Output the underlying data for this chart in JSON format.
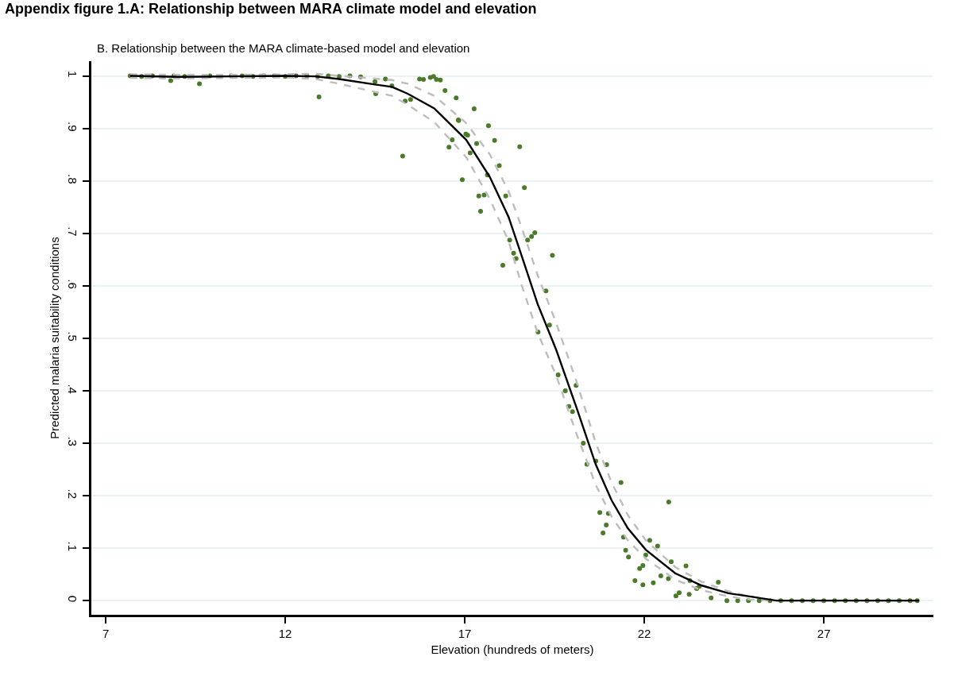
{
  "chart_data": {
    "type": "scatter",
    "title": "Appendix figure 1.A: Relationship between MARA climate model and elevation",
    "subtitle": "B. Relationship between the MARA climate-based model and elevation",
    "xlabel": "Elevation (hundreds of meters)",
    "ylabel": "Predicted malaria suitability conditions",
    "xlim": [
      6.6,
      30.05
    ],
    "xticks": [
      7,
      12,
      17,
      22,
      27
    ],
    "ylim": [
      -0.027,
      1.028
    ],
    "yticks": [
      0,
      {
        "value": 0.1,
        "label": ".1"
      },
      {
        "value": 0.2,
        "label": ".2"
      },
      {
        "value": 0.3,
        "label": ".3"
      },
      {
        "value": 0.4,
        "label": ".4"
      },
      {
        "value": 0.5,
        "label": ".5"
      },
      {
        "value": 0.6,
        "label": ".6"
      },
      {
        "value": 0.7,
        "label": ".7"
      },
      {
        "value": 0.8,
        "label": ".8"
      },
      {
        "value": 0.9,
        "label": ".9"
      },
      1
    ],
    "grid": "y",
    "series": [
      {
        "marker": "circle",
        "color": "#4a7a2a",
        "x": [
          7.68,
          8.0,
          8.3,
          8.6,
          8.81,
          8.9,
          9.2,
          9.61,
          9.9,
          10.2,
          10.5,
          10.8,
          11.1,
          11.4,
          11.7,
          12.0,
          12.3,
          12.6,
          12.94,
          12.9,
          13.2,
          13.5,
          13.8,
          14.1,
          14.5,
          14.52,
          14.79,
          14.97,
          15.27,
          15.34,
          15.49,
          15.74,
          15.85,
          16.04,
          16.13,
          16.21,
          16.32,
          16.45,
          16.56,
          16.65,
          16.76,
          16.82,
          16.83,
          16.93,
          17.03,
          17.08,
          17.15,
          17.26,
          17.33,
          17.39,
          17.44,
          17.54,
          17.63,
          17.66,
          17.83,
          17.96,
          18.06,
          18.14,
          18.25,
          18.36,
          18.43,
          18.53,
          18.66,
          18.75,
          18.86,
          18.95,
          19.04,
          19.26,
          19.36,
          19.44,
          19.6,
          19.8,
          19.9,
          20.0,
          20.1,
          20.3,
          20.4,
          20.65,
          20.76,
          20.85,
          20.94,
          20.95,
          21.0,
          21.35,
          21.42,
          21.48,
          21.56,
          21.74,
          21.87,
          21.96,
          21.96,
          22.04,
          22.15,
          22.25,
          22.37,
          22.46,
          22.67,
          22.68,
          22.75,
          22.88,
          22.97,
          23.16,
          23.25,
          23.27,
          23.46,
          23.53,
          23.86,
          24.06,
          24.3,
          24.6,
          24.9,
          25.2,
          25.5,
          25.8,
          26.1,
          26.4,
          26.7,
          27.0,
          27.3,
          27.6,
          27.9,
          28.2,
          28.5,
          28.8,
          29.1,
          29.4,
          29.6
        ],
        "values": [
          1.0,
          0.999,
          1.0,
          0.998,
          0.991,
          1.0,
          0.999,
          0.985,
          1.0,
          0.999,
          1.0,
          1.0,
          0.999,
          1.0,
          1.0,
          0.999,
          1.0,
          1.0,
          0.96,
          0.999,
          1.0,
          0.999,
          1.0,
          0.998,
          0.989,
          0.966,
          0.994,
          0.981,
          0.847,
          0.952,
          0.955,
          0.994,
          0.993,
          0.997,
          0.999,
          0.993,
          0.992,
          0.972,
          0.864,
          0.878,
          0.958,
          0.916,
          0.915,
          0.802,
          0.889,
          0.887,
          0.853,
          0.937,
          0.871,
          0.771,
          0.742,
          0.773,
          0.811,
          0.905,
          0.877,
          0.829,
          0.639,
          0.771,
          0.687,
          0.662,
          0.652,
          0.865,
          0.787,
          0.687,
          0.694,
          0.701,
          0.512,
          0.59,
          0.525,
          0.658,
          0.43,
          0.4,
          0.37,
          0.36,
          0.41,
          0.3,
          0.26,
          0.266,
          0.168,
          0.129,
          0.144,
          0.259,
          0.166,
          0.225,
          0.121,
          0.096,
          0.083,
          0.038,
          0.061,
          0.03,
          0.067,
          0.087,
          0.115,
          0.034,
          0.104,
          0.047,
          0.042,
          0.188,
          0.074,
          0.009,
          0.015,
          0.066,
          0.012,
          0.038,
          0.023,
          0.027,
          0.005,
          0.035,
          0.0,
          0.0,
          0.0,
          0.0,
          0.0,
          0.0,
          0.0,
          0.0,
          0.0,
          0.0,
          0.0,
          0.0,
          0.0,
          0.0,
          0.0,
          0.0,
          0.0,
          0.0,
          0.0
        ]
      },
      {
        "type": "line",
        "marker": "none",
        "line_style": "dashed",
        "color": "#bdbdbd",
        "x": [
          7.68,
          9,
          10.5,
          12,
          12.83,
          13.5,
          14.46,
          14.97,
          15.41,
          16.15,
          17.04,
          17.7,
          18.22,
          18.59,
          19.03,
          19.54,
          20.1,
          20.65,
          21.09,
          21.54,
          22.04,
          22.86,
          23.59,
          24.34,
          24.93,
          25.67,
          29.65
        ],
        "values": [
          1.003,
          1.002,
          1.002,
          1.003,
          1.004,
          1.0,
          0.995,
          0.992,
          0.985,
          0.962,
          0.91,
          0.85,
          0.78,
          0.71,
          0.62,
          0.53,
          0.42,
          0.3,
          0.225,
          0.163,
          0.115,
          0.064,
          0.036,
          0.018,
          0.008,
          0.0,
          0.0
        ]
      },
      {
        "type": "line",
        "marker": "none",
        "line_style": "dashed",
        "color": "#bdbdbd",
        "x": [
          7.68,
          9,
          10.5,
          12,
          12.83,
          13.5,
          14.46,
          14.97,
          15.41,
          16.15,
          17.04,
          17.7,
          18.22,
          18.59,
          19.03,
          19.54,
          20.1,
          20.65,
          21.09,
          21.54,
          22.04,
          22.86,
          23.59,
          24.34,
          24.93,
          25.67,
          29.65
        ],
        "values": [
          0.996,
          0.995,
          0.996,
          0.997,
          0.994,
          0.985,
          0.97,
          0.962,
          0.945,
          0.912,
          0.845,
          0.765,
          0.685,
          0.6,
          0.51,
          0.43,
          0.32,
          0.22,
          0.16,
          0.115,
          0.08,
          0.04,
          0.02,
          0.008,
          0.002,
          0.0,
          0.0
        ]
      },
      {
        "type": "line",
        "marker": "none",
        "line_style": "solid",
        "color": "#000000",
        "x": [
          7.68,
          9,
          10.5,
          12,
          12.83,
          13.5,
          14.46,
          14.97,
          15.41,
          16.15,
          17.04,
          17.7,
          18.22,
          18.59,
          19.03,
          19.54,
          20.1,
          20.65,
          21.09,
          21.54,
          22.04,
          22.86,
          23.59,
          24.34,
          24.93,
          25.67,
          29.65
        ],
        "values": [
          1.0,
          0.998,
          0.999,
          1.0,
          0.999,
          0.994,
          0.984,
          0.979,
          0.966,
          0.938,
          0.878,
          0.807,
          0.731,
          0.656,
          0.565,
          0.479,
          0.37,
          0.259,
          0.191,
          0.138,
          0.097,
          0.052,
          0.029,
          0.014,
          0.008,
          0.0,
          0.0
        ]
      }
    ]
  }
}
